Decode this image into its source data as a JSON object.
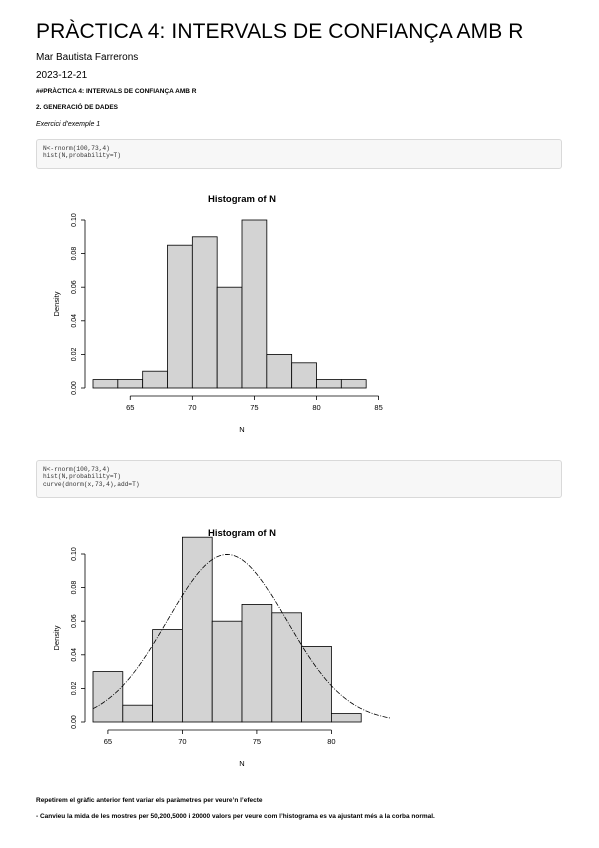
{
  "doc": {
    "title": "PRÀCTICA 4: INTERVALS DE CONFIANÇA AMB R",
    "author": "Mar Bautista Farrerons",
    "date": "2023-12-21",
    "heading1": "##PRÀCTICA 4: INTERVALS DE CONFIANÇA AMB R",
    "heading2": "2. GENERACIÓ DE DADES",
    "example_label": "Exercici d’exemple 1"
  },
  "code1": [
    "N<-rnorm(100,73,4)",
    "hist(N,probability=T)"
  ],
  "code2": [
    "N<-rnorm(100,73,4)",
    "hist(N,probability=T)",
    "curve(dnorm(x,73,4),add=T)"
  ],
  "chart_data": [
    {
      "type": "bar",
      "title": "Histogram of N",
      "xlabel": "N",
      "ylabel": "Density",
      "xlim": [
        62,
        86
      ],
      "ylim": [
        0,
        0.1
      ],
      "xticks": [
        65,
        70,
        75,
        80,
        85
      ],
      "yticks": [
        0.0,
        0.02,
        0.04,
        0.06,
        0.08,
        0.1
      ],
      "breaks": [
        62,
        64,
        66,
        68,
        70,
        72,
        74,
        76,
        78,
        80,
        82,
        84,
        86
      ],
      "values": [
        0.005,
        0.005,
        0.01,
        0.085,
        0.09,
        0.06,
        0.1,
        0.02,
        0.015,
        0.005,
        0.005,
        0.0
      ],
      "curve": null
    },
    {
      "type": "bar",
      "title": "Histogram of N",
      "xlabel": "N",
      "ylabel": "Density",
      "xlim": [
        64,
        84
      ],
      "ylim": [
        0,
        0.1
      ],
      "xticks": [
        65,
        70,
        75,
        80
      ],
      "yticks": [
        0.0,
        0.02,
        0.04,
        0.06,
        0.08,
        0.1
      ],
      "breaks": [
        64,
        66,
        68,
        70,
        72,
        74,
        76,
        78,
        80,
        82,
        84
      ],
      "values": [
        0.03,
        0.01,
        0.055,
        0.11,
        0.06,
        0.07,
        0.065,
        0.045,
        0.005,
        0.0
      ],
      "curve": {
        "mean": 73,
        "sd": 4
      }
    }
  ],
  "text": {
    "para1": "Repetirem el gràfic anterior fent variar els paràmetres per veure’n l’efecte",
    "para2": "- Canvieu la mida de les mostres per 50,200,5000 i 20000 valors per veure com l’histograma es va ajustant més a la corba normal."
  }
}
